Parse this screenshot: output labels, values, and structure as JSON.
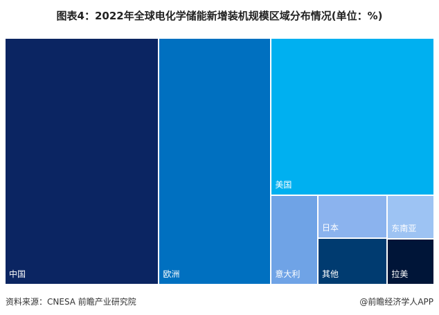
{
  "chart_data": {
    "type": "treemap",
    "title": "图表4：2022年全球电化学储能新增装机规模区域分布情况(单位：%)",
    "items": [
      {
        "name": "中国",
        "value": 36.0,
        "color": "#0B2562"
      },
      {
        "name": "欧洲",
        "value": 26.2,
        "color": "#0070C0"
      },
      {
        "name": "美国",
        "value": 24.2,
        "color": "#00B0F0"
      },
      {
        "name": "意大利",
        "value": 3.9,
        "color": "#6FA3E6"
      },
      {
        "name": "日本",
        "value": 2.8,
        "color": "#8BB3EE"
      },
      {
        "name": "其他",
        "value": 3.0,
        "color": "#003B70"
      },
      {
        "name": "东南亚",
        "value": 1.9,
        "color": "#9DC3F3"
      },
      {
        "name": "拉美",
        "value": 2.0,
        "color": "#001538"
      }
    ]
  },
  "footer": {
    "source": "资料来源：CNESA 前瞻产业研究院",
    "credit": "@前瞻经济学人APP"
  }
}
